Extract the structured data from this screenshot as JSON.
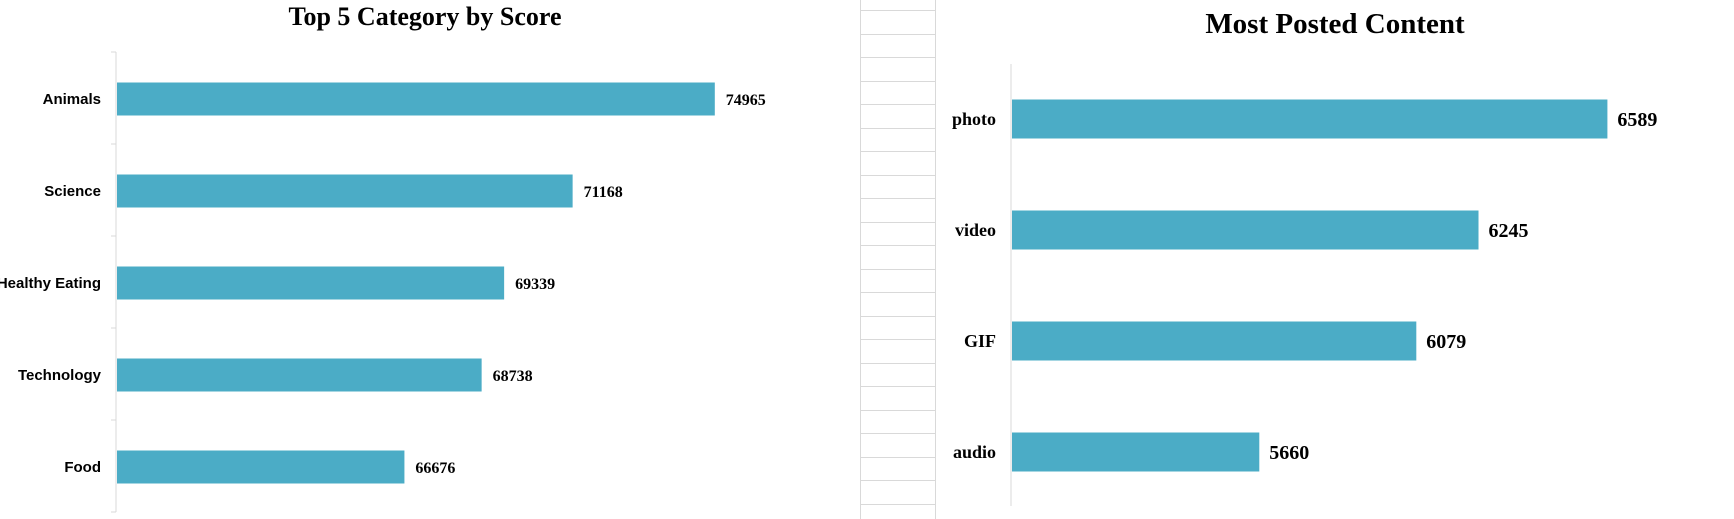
{
  "chart_data": [
    {
      "type": "bar",
      "orientation": "horizontal",
      "title": "Top 5 Category by Score",
      "categories": [
        "Animals",
        "Science",
        "Healthy Eating",
        "Technology",
        "Food"
      ],
      "values": [
        74965,
        71168,
        69339,
        68738,
        66676
      ],
      "data_labels": [
        "74965",
        "71168",
        "69339",
        "68738",
        "66676"
      ],
      "xlim": [
        59000,
        77000
      ],
      "grid": false,
      "legend": "none",
      "bar_color": "#4bacc6"
    },
    {
      "type": "bar",
      "orientation": "horizontal",
      "title": "Most Posted Content",
      "categories": [
        "photo",
        "video",
        "GIF",
        "audio"
      ],
      "values": [
        6589,
        6245,
        6079,
        5660
      ],
      "data_labels": [
        "6589",
        "6245",
        "6079",
        "5660"
      ],
      "xlim": [
        5000,
        6700
      ],
      "grid": false,
      "legend": "none",
      "bar_color": "#4bacc6"
    }
  ]
}
